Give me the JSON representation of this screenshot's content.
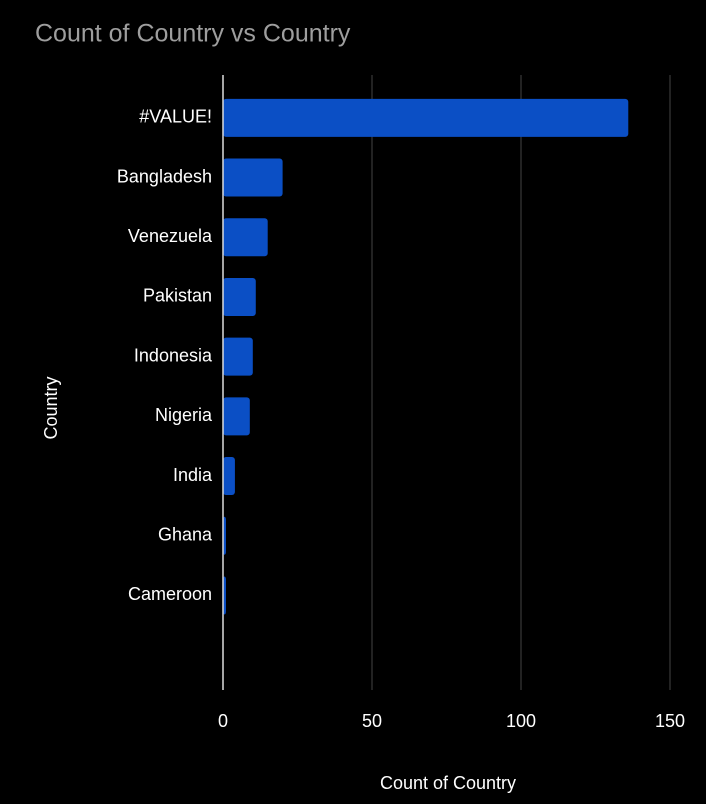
{
  "chart_data": {
    "type": "bar",
    "orientation": "horizontal",
    "title": "Count of Country vs Country",
    "x_label": "Count of Country",
    "y_label": "Country",
    "categories": [
      "#VALUE!",
      "Bangladesh",
      "Venezuela",
      "Pakistan",
      "Indonesia",
      "Nigeria",
      "India",
      "Ghana",
      "Cameroon"
    ],
    "values": [
      136,
      20,
      15,
      11,
      10,
      9,
      4,
      1,
      1
    ],
    "color": "#0b4fc5",
    "xlim": [
      0,
      150
    ],
    "xticks": [
      0,
      50,
      100,
      150
    ],
    "grid": true
  }
}
